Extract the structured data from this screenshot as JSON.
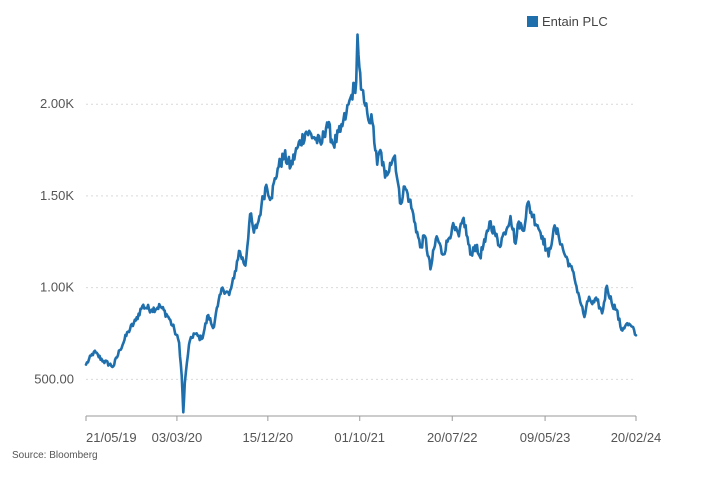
{
  "chart_data": {
    "type": "line",
    "title": "",
    "xlabel": "",
    "ylabel": "",
    "source": "Source: Bloomberg",
    "legend": {
      "position": "top-right",
      "entries": [
        "Entain PLC"
      ]
    },
    "grid": {
      "horizontal": true,
      "vertical": false,
      "style": "dotted"
    },
    "xlim": [
      "2019-05-21",
      "2024-02-20"
    ],
    "ylim": [
      300,
      2350
    ],
    "x_ticks": [
      "21/05/19",
      "03/03/20",
      "15/12/20",
      "01/10/21",
      "20/07/22",
      "09/05/23",
      "20/02/24"
    ],
    "y_ticks": [
      {
        "value": 500,
        "label": "500.00"
      },
      {
        "value": 1000,
        "label": "1.00K"
      },
      {
        "value": 1500,
        "label": "1.50K"
      },
      {
        "value": 2000,
        "label": "2.00K"
      }
    ],
    "series": [
      {
        "name": "Entain PLC",
        "color": "#1f6fad",
        "x": [
          "2019-05-21",
          "2019-06-15",
          "2019-07-15",
          "2019-08-15",
          "2019-09-05",
          "2019-10-01",
          "2019-10-25",
          "2019-11-15",
          "2019-12-15",
          "2020-01-10",
          "2020-02-05",
          "2020-02-24",
          "2020-03-10",
          "2020-03-18",
          "2020-03-23",
          "2020-03-28",
          "2020-04-10",
          "2020-04-25",
          "2020-05-20",
          "2020-06-10",
          "2020-06-25",
          "2020-07-10",
          "2020-07-25",
          "2020-08-15",
          "2020-08-30",
          "2020-09-15",
          "2020-10-05",
          "2020-10-20",
          "2020-11-01",
          "2020-11-15",
          "2020-11-25",
          "2020-12-10",
          "2020-12-25",
          "2021-01-15",
          "2021-02-05",
          "2021-02-25",
          "2021-03-20",
          "2021-04-15",
          "2021-05-10",
          "2021-06-01",
          "2021-06-20",
          "2021-07-10",
          "2021-08-01",
          "2021-08-20",
          "2021-09-05",
          "2021-09-20",
          "2021-09-24",
          "2021-09-30",
          "2021-10-05",
          "2021-10-15",
          "2021-10-25",
          "2021-11-10",
          "2021-11-25",
          "2021-12-05",
          "2021-12-20",
          "2022-01-05",
          "2022-01-20",
          "2022-02-05",
          "2022-02-20",
          "2022-03-07",
          "2022-03-25",
          "2022-04-10",
          "2022-04-25",
          "2022-05-12",
          "2022-06-01",
          "2022-06-20",
          "2022-07-05",
          "2022-07-20",
          "2022-08-10",
          "2022-08-25",
          "2022-09-15",
          "2022-09-30",
          "2022-10-15",
          "2022-11-01",
          "2022-11-15",
          "2022-12-01",
          "2022-12-15",
          "2023-01-01",
          "2023-01-20",
          "2023-02-05",
          "2023-02-15",
          "2023-03-01",
          "2023-03-15",
          "2023-04-01",
          "2023-04-15",
          "2023-05-01",
          "2023-05-20",
          "2023-06-05",
          "2023-06-20",
          "2023-07-10",
          "2023-07-25",
          "2023-08-10",
          "2023-08-25",
          "2023-09-10",
          "2023-09-25",
          "2023-10-05",
          "2023-10-20",
          "2023-11-05",
          "2023-11-20",
          "2023-12-05",
          "2023-12-20",
          "2024-01-05",
          "2024-01-20",
          "2024-02-05",
          "2024-02-20"
        ],
        "values": [
          580,
          650,
          600,
          570,
          660,
          760,
          820,
          900,
          880,
          900,
          840,
          770,
          700,
          520,
          320,
          480,
          690,
          750,
          720,
          850,
          780,
          900,
          1000,
          960,
          1050,
          1200,
          1120,
          1400,
          1300,
          1360,
          1450,
          1560,
          1490,
          1650,
          1720,
          1660,
          1770,
          1850,
          1820,
          1780,
          1900,
          1780,
          1850,
          1950,
          2050,
          2120,
          2380,
          2200,
          2080,
          2010,
          1950,
          1900,
          1670,
          1750,
          1600,
          1680,
          1720,
          1460,
          1550,
          1480,
          1350,
          1220,
          1280,
          1100,
          1280,
          1180,
          1250,
          1330,
          1280,
          1380,
          1180,
          1230,
          1170,
          1250,
          1360,
          1300,
          1230,
          1300,
          1390,
          1240,
          1360,
          1310,
          1460,
          1390,
          1340,
          1280,
          1170,
          1320,
          1290,
          1180,
          1130,
          1050,
          950,
          840,
          950,
          910,
          930,
          860,
          1010,
          920,
          880,
          770,
          800,
          790,
          740
        ]
      }
    ]
  }
}
